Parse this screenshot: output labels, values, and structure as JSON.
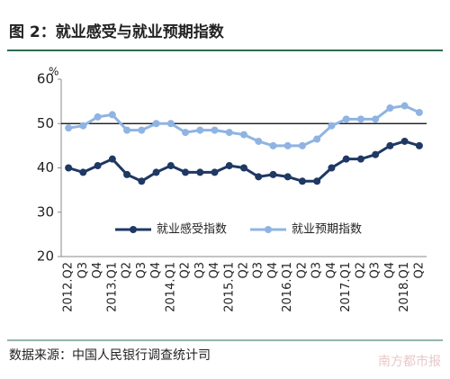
{
  "chart_data": {
    "type": "line",
    "title": "图 2：就业感受与就业预期指数",
    "y_unit": "%",
    "categories": [
      "2012.Q2",
      "Q3",
      "Q4",
      "2013.Q1",
      "Q2",
      "Q3",
      "Q4",
      "2014.Q1",
      "Q2",
      "Q3",
      "Q4",
      "2015.Q1",
      "Q2",
      "Q3",
      "Q4",
      "2016.Q1",
      "Q2",
      "Q3",
      "Q4",
      "2017.Q1",
      "Q2",
      "Q3",
      "Q4",
      "2018.Q1",
      "Q2"
    ],
    "series": [
      {
        "name": "就业感受指数",
        "color": "#1f3864",
        "values": [
          40,
          39,
          40.5,
          42,
          38.5,
          37,
          39,
          40.5,
          39,
          39,
          39,
          40.5,
          40,
          38,
          38.5,
          38,
          37,
          37,
          40,
          42,
          42,
          43,
          45,
          46,
          45
        ]
      },
      {
        "name": "就业预期指数",
        "color": "#8fb4e3",
        "values": [
          49,
          49.5,
          51.5,
          52,
          48.5,
          48.5,
          50,
          50,
          48,
          48.5,
          48.5,
          48,
          47.5,
          46,
          45,
          45,
          45,
          46.5,
          49.5,
          51,
          51,
          51,
          53.5,
          54,
          52.5
        ]
      }
    ],
    "ylim": [
      20,
      60
    ],
    "yticks": [
      20,
      30,
      40,
      50,
      60
    ],
    "reference_line": 50,
    "legend": "bottom",
    "source": "数据来源：中国人民银行调查统计司",
    "watermark": "南方都市报"
  }
}
